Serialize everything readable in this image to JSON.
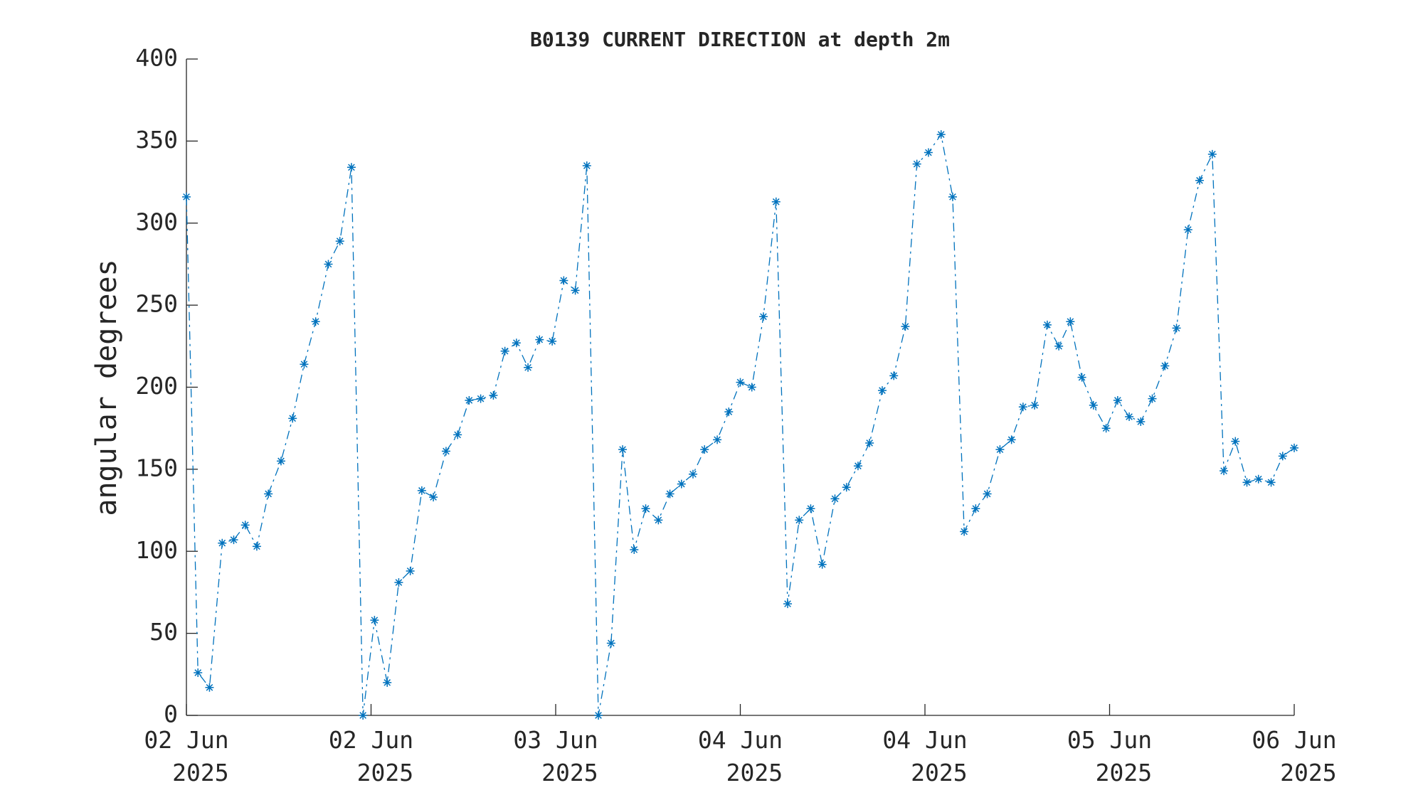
{
  "chart_data": {
    "type": "line",
    "title": "B0139 CURRENT DIRECTION at depth 2m",
    "ylabel": "angular degrees",
    "color": "#0072bd",
    "line_style": "dash-dot",
    "marker": "asterisk",
    "x": [
      0,
      1.0,
      2.0,
      3.1,
      4.1,
      5.1,
      6.1,
      7.1,
      8.2,
      9.2,
      10.2,
      11.2,
      12.3,
      13.3,
      14.3,
      15.3,
      16.3,
      17.4,
      18.4,
      19.4,
      20.4,
      21.4,
      22.5,
      23.5,
      24.5,
      25.5,
      26.6,
      27.6,
      28.6,
      29.6,
      30.6,
      31.7,
      32.7,
      33.7,
      34.7,
      35.7,
      36.8,
      37.8,
      38.8,
      39.8,
      40.9,
      41.9,
      42.9,
      43.9,
      44.9,
      46.0,
      47.0,
      48.0,
      49.0,
      50.0,
      51.1,
      52.1,
      53.1,
      54.1,
      55.1,
      56.2,
      57.2,
      58.2,
      59.2,
      60.3,
      61.3,
      62.3,
      63.3,
      64.3,
      65.4,
      66.4,
      67.4,
      68.4,
      69.4,
      70.5,
      71.5,
      72.5,
      73.5,
      74.6,
      75.6,
      76.6,
      77.6,
      78.6,
      79.7,
      80.7,
      81.7,
      82.7,
      83.7,
      84.8,
      85.8,
      86.8,
      87.8,
      88.9,
      89.9,
      90.9,
      91.9,
      92.9,
      94.0,
      95.0,
      96.0
    ],
    "values": [
      316,
      26,
      17,
      105,
      107,
      116,
      103,
      135,
      155,
      181,
      214,
      240,
      275,
      289,
      334,
      0,
      58,
      20,
      81,
      88,
      137,
      133,
      161,
      171,
      192,
      193,
      195,
      222,
      227,
      212,
      229,
      228,
      265,
      259,
      335,
      0,
      44,
      162,
      101,
      126,
      119,
      135,
      141,
      147,
      162,
      168,
      185,
      203,
      200,
      243,
      313,
      68,
      119,
      126,
      92,
      132,
      139,
      152,
      166,
      198,
      207,
      237,
      336,
      343,
      354,
      316,
      112,
      126,
      135,
      162,
      168,
      188,
      189,
      238,
      225,
      240,
      206,
      189,
      175,
      192,
      182,
      179,
      193,
      213,
      236,
      296,
      326,
      342,
      149,
      167,
      142,
      144,
      142,
      158,
      163
    ],
    "xlim": [
      0,
      96
    ],
    "xticks": [
      {
        "value": 0,
        "label": "02 Jun\n2025"
      },
      {
        "value": 16,
        "label": "02 Jun\n2025"
      },
      {
        "value": 32,
        "label": "03 Jun\n2025"
      },
      {
        "value": 48,
        "label": "04 Jun\n2025"
      },
      {
        "value": 64,
        "label": "04 Jun\n2025"
      },
      {
        "value": 80,
        "label": "05 Jun\n2025"
      },
      {
        "value": 96,
        "label": "06 Jun\n2025"
      }
    ],
    "ylim": [
      0,
      400
    ],
    "yticks": [
      0,
      50,
      100,
      150,
      200,
      250,
      300,
      350,
      400
    ],
    "grid": false
  }
}
